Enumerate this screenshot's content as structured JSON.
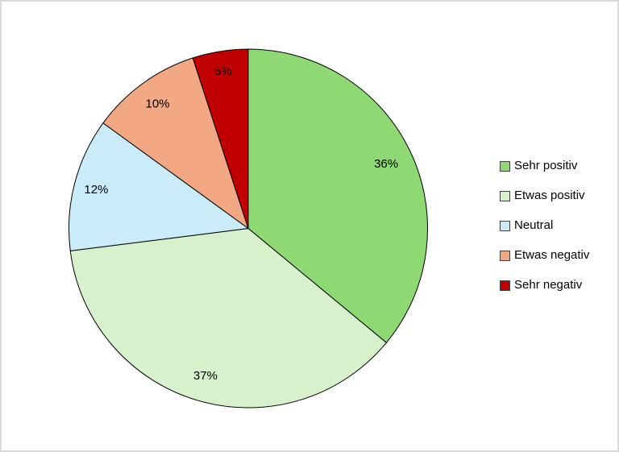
{
  "chart_data": {
    "type": "pie",
    "title": "",
    "categories": [
      "Sehr positiv",
      "Etwas positiv",
      "Neutral",
      "Etwas negativ",
      "Sehr negativ"
    ],
    "values": [
      36,
      37,
      12,
      10,
      5
    ],
    "point_labels": [
      "36%",
      "37%",
      "12%",
      "10%",
      "5%"
    ],
    "colors": [
      "#8ED973",
      "#D7F1CC",
      "#C9EBFA",
      "#F2A983",
      "#C00000"
    ],
    "stroke_color": "#000000",
    "label_color": "#000000",
    "background_color": "#FFFFFF",
    "start_angle_deg": 0,
    "direction": "clockwise",
    "legend_position": "right",
    "legend": {
      "items": [
        {
          "label": "Sehr positiv",
          "color": "#8ED973"
        },
        {
          "label": "Etwas positiv",
          "color": "#D7F1CC"
        },
        {
          "label": "Neutral",
          "color": "#C9EBFA"
        },
        {
          "label": "Etwas negativ",
          "color": "#F2A983"
        },
        {
          "label": "Sehr negativ",
          "color": "#C00000"
        }
      ]
    }
  }
}
